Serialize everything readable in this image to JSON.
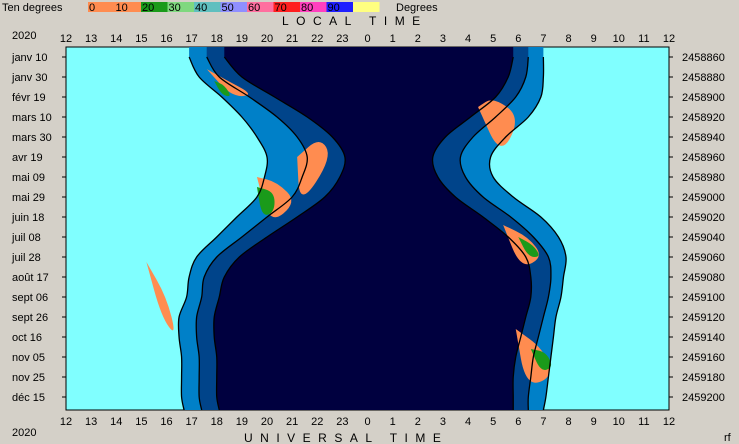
{
  "chart_data": {
    "type": "area",
    "legend": {
      "title": "Ten degrees",
      "unit": "Degrees",
      "items": [
        {
          "label": "0",
          "color": "#ff8c50"
        },
        {
          "label": "10",
          "color": "#ff8c50"
        },
        {
          "label": "20",
          "color": "#1a9a1a"
        },
        {
          "label": "30",
          "color": "#7fd87f"
        },
        {
          "label": "40",
          "color": "#5fbfbf"
        },
        {
          "label": "50",
          "color": "#8f8fff"
        },
        {
          "label": "60",
          "color": "#ff6f9f"
        },
        {
          "label": "70",
          "color": "#ff1f1f"
        },
        {
          "label": "80",
          "color": "#ff3fbf"
        },
        {
          "label": "90",
          "color": "#1f1fff"
        },
        {
          "label": "",
          "color": "#ffff80"
        }
      ]
    },
    "top_label": "LOCAL TIME",
    "bottom_label": "UNIVERSAL TIME",
    "year_top": "2020",
    "year_bottom": "2020",
    "corner_mark": "rf",
    "hour_ticks": [
      "12",
      "13",
      "14",
      "15",
      "16",
      "17",
      "18",
      "19",
      "20",
      "21",
      "22",
      "23",
      "0",
      "1",
      "2",
      "3",
      "4",
      "5",
      "6",
      "7",
      "8",
      "9",
      "10",
      "11",
      "12"
    ],
    "date_labels": [
      "janv 10",
      "janv 30",
      "févr 19",
      "mars 10",
      "mars 30",
      "avr 19",
      "mai 09",
      "mai 29",
      "juin 18",
      "juil 08",
      "juil 28",
      "août 17",
      "sept 06",
      "sept 26",
      "oct 16",
      "nov 05",
      "nov 25",
      "déc 15"
    ],
    "jd_labels": [
      "2458860",
      "2458880",
      "2458900",
      "2458920",
      "2458940",
      "2458960",
      "2458980",
      "2459000",
      "2459020",
      "2459040",
      "2459060",
      "2459080",
      "2459100",
      "2459120",
      "2459140",
      "2459160",
      "2459180",
      "2459200"
    ],
    "colors": {
      "day": "#80ffff",
      "civil": "#0080c8",
      "nautical": "#00448a",
      "night": "#00003f",
      "orange": "#ff8c50",
      "green": "#1a9a1a"
    },
    "twilight_boundaries": {
      "note_days": [
        0,
        20,
        40,
        60,
        80,
        100,
        120,
        140,
        160,
        180,
        200,
        220,
        240,
        260,
        280,
        300,
        320,
        340,
        355
      ],
      "sunset_hour": [
        16.9,
        17.3,
        18.2,
        19.0,
        19.6,
        20.0,
        19.9,
        19.6,
        18.8,
        18.0,
        17.2,
        16.9,
        16.8,
        16.5,
        16.5,
        16.6,
        16.6,
        16.6,
        16.7
      ],
      "civil_end_hour": [
        17.6,
        18.1,
        19.3,
        20.4,
        21.2,
        21.6,
        21.4,
        21.0,
        20.0,
        19.0,
        18.0,
        17.5,
        17.4,
        17.2,
        17.2,
        17.3,
        17.3,
        17.3,
        17.4
      ],
      "naut_end_hour": [
        18.3,
        19.0,
        20.3,
        21.6,
        22.6,
        23.1,
        22.9,
        22.3,
        21.2,
        20.0,
        18.9,
        18.3,
        18.1,
        17.9,
        17.9,
        18.0,
        18.0,
        18.0,
        18.1
      ],
      "naut_start_hour": [
        29.8,
        29.6,
        29.1,
        28.1,
        27.1,
        26.6,
        26.8,
        27.5,
        28.6,
        29.6,
        30.3,
        30.5,
        30.5,
        30.3,
        30.1,
        29.9,
        29.8,
        29.8,
        29.8
      ],
      "civil_start_hour": [
        30.4,
        30.3,
        29.9,
        29.1,
        28.2,
        27.7,
        27.9,
        28.6,
        29.7,
        30.6,
        31.2,
        31.3,
        31.2,
        31.0,
        30.8,
        30.6,
        30.5,
        30.4,
        30.4
      ],
      "sunrise_hour": [
        31.0,
        31.0,
        30.9,
        30.4,
        29.5,
        28.9,
        29.0,
        29.8,
        30.9,
        31.6,
        31.9,
        31.8,
        31.7,
        31.5,
        31.4,
        31.3,
        31.2,
        31.1,
        31.0
      ]
    }
  }
}
